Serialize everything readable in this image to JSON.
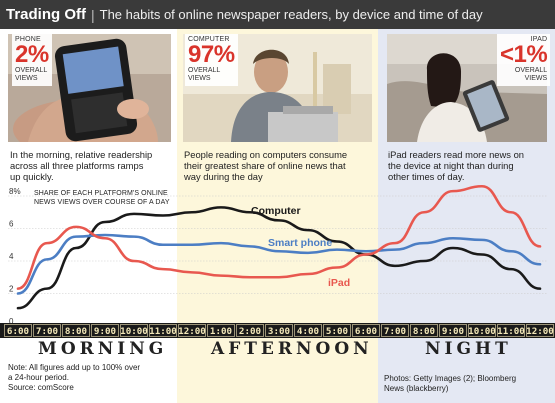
{
  "header": {
    "title": "Trading Off",
    "subtitle": "The habits of online newspaper readers, by device and time of day"
  },
  "panels": [
    {
      "id": "phone",
      "stat_label": "PHONE",
      "stat_value": "2%",
      "stat_sub1": "OVERALL",
      "stat_sub2": "VIEWS",
      "caption_lines": [
        "In the morning, relative readership",
        "across all three platforms ramps",
        "up quickly."
      ]
    },
    {
      "id": "computer",
      "stat_label": "COMPUTER",
      "stat_value": "97%",
      "stat_sub1": "OVERALL",
      "stat_sub2": "VIEWS",
      "caption_lines": [
        "People reading on computers consume",
        "their greatest share of online news that",
        "way during the day"
      ]
    },
    {
      "id": "ipad",
      "stat_label": "IPAD",
      "stat_value": "<1%",
      "stat_sub1": "OVERALL",
      "stat_sub2": "VIEWS",
      "caption_lines": [
        "iPad readers read more news on",
        "the device at night than during",
        "other times of day."
      ]
    }
  ],
  "plot_note_lines": [
    "SHARE OF EACH PLATFORM'S ONLINE",
    "NEWS VIEWS OVER COURSE OF A DAY"
  ],
  "periods": [
    "MORNING",
    "AFTERNOON",
    "NIGHT"
  ],
  "footnotes": {
    "left_lines": [
      "Note: All figures add up to 100% over",
      "a 24-hour period.",
      "Source: comScore"
    ],
    "right_lines": [
      "Photos: Getty Images (2); Bloomberg",
      "News (blackberry)"
    ]
  },
  "colors": {
    "computer": "#1a1a1a",
    "smartphone": "#4c7ec4",
    "ipad": "#e8584f",
    "accent_red": "#d9342b",
    "title_bar": "#3a3a3a"
  },
  "chart_data": {
    "type": "line",
    "x": [
      "6:00",
      "7:00",
      "8:00",
      "9:00",
      "10:00",
      "11:00",
      "12:00",
      "1:00",
      "2:00",
      "3:00",
      "4:00",
      "5:00",
      "6:00",
      "7:00",
      "8:00",
      "9:00",
      "10:00",
      "11:00",
      "12:00"
    ],
    "ylim": [
      0,
      8
    ],
    "y_ticks": [
      "0",
      "2",
      "4",
      "6",
      "8%"
    ],
    "series": [
      {
        "name": "Computer",
        "color": "#1a1a1a",
        "values": [
          1.1,
          2.3,
          4.8,
          6.4,
          6.9,
          6.8,
          7.0,
          7.3,
          7.0,
          6.5,
          5.9,
          5.2,
          4.4,
          3.7,
          4.0,
          4.8,
          4.4,
          3.5,
          2.3
        ]
      },
      {
        "name": "Smart phone",
        "color": "#4c7ec4",
        "values": [
          2.0,
          4.1,
          5.5,
          5.6,
          5.5,
          5.0,
          5.0,
          5.1,
          4.9,
          4.6,
          4.5,
          4.7,
          4.6,
          4.7,
          5.1,
          5.4,
          5.3,
          4.6,
          3.8
        ]
      },
      {
        "name": "iPad",
        "color": "#e8584f",
        "values": [
          2.3,
          5.1,
          6.1,
          5.4,
          4.0,
          3.5,
          3.3,
          3.1,
          3.0,
          3.0,
          3.2,
          3.6,
          4.4,
          5.1,
          7.0,
          8.3,
          8.6,
          7.0,
          4.9
        ]
      }
    ]
  }
}
